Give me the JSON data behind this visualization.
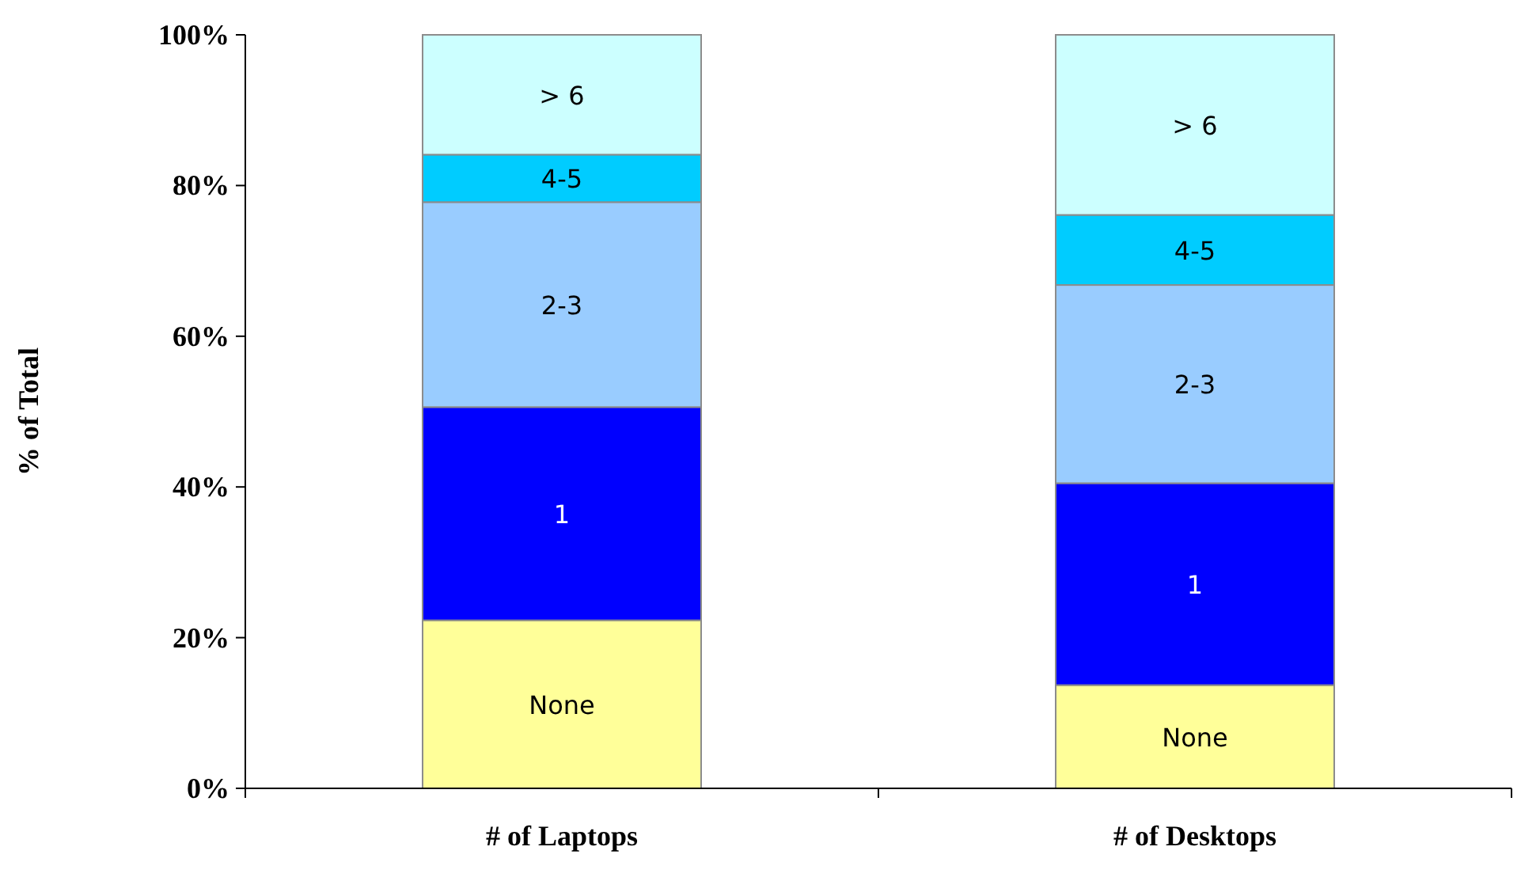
{
  "chart_data": {
    "type": "bar",
    "stacked": true,
    "ylabel": "% of Total",
    "categories": [
      "# of Laptops",
      "# of Desktops"
    ],
    "series": [
      {
        "name": "None",
        "color": "#ffff99",
        "values": [
          22.3,
          13.7
        ]
      },
      {
        "name": "1",
        "color": "#0000ff",
        "values": [
          28.3,
          26.8
        ]
      },
      {
        "name": "2-3",
        "color": "#99ccff",
        "values": [
          27.2,
          26.3
        ]
      },
      {
        "name": "4-5",
        "color": "#00ccff",
        "values": [
          6.3,
          9.3
        ]
      },
      {
        "name": "> 6",
        "color": "#ccffff",
        "values": [
          15.9,
          23.9
        ]
      }
    ],
    "ylim": [
      0,
      100
    ],
    "yticks": [
      {
        "value": 0,
        "label": "0%"
      },
      {
        "value": 20,
        "label": "20%"
      },
      {
        "value": 40,
        "label": "40%"
      },
      {
        "value": 60,
        "label": "60%"
      },
      {
        "value": 80,
        "label": "80%"
      },
      {
        "value": 100,
        "label": "100%"
      }
    ],
    "grid": false
  }
}
